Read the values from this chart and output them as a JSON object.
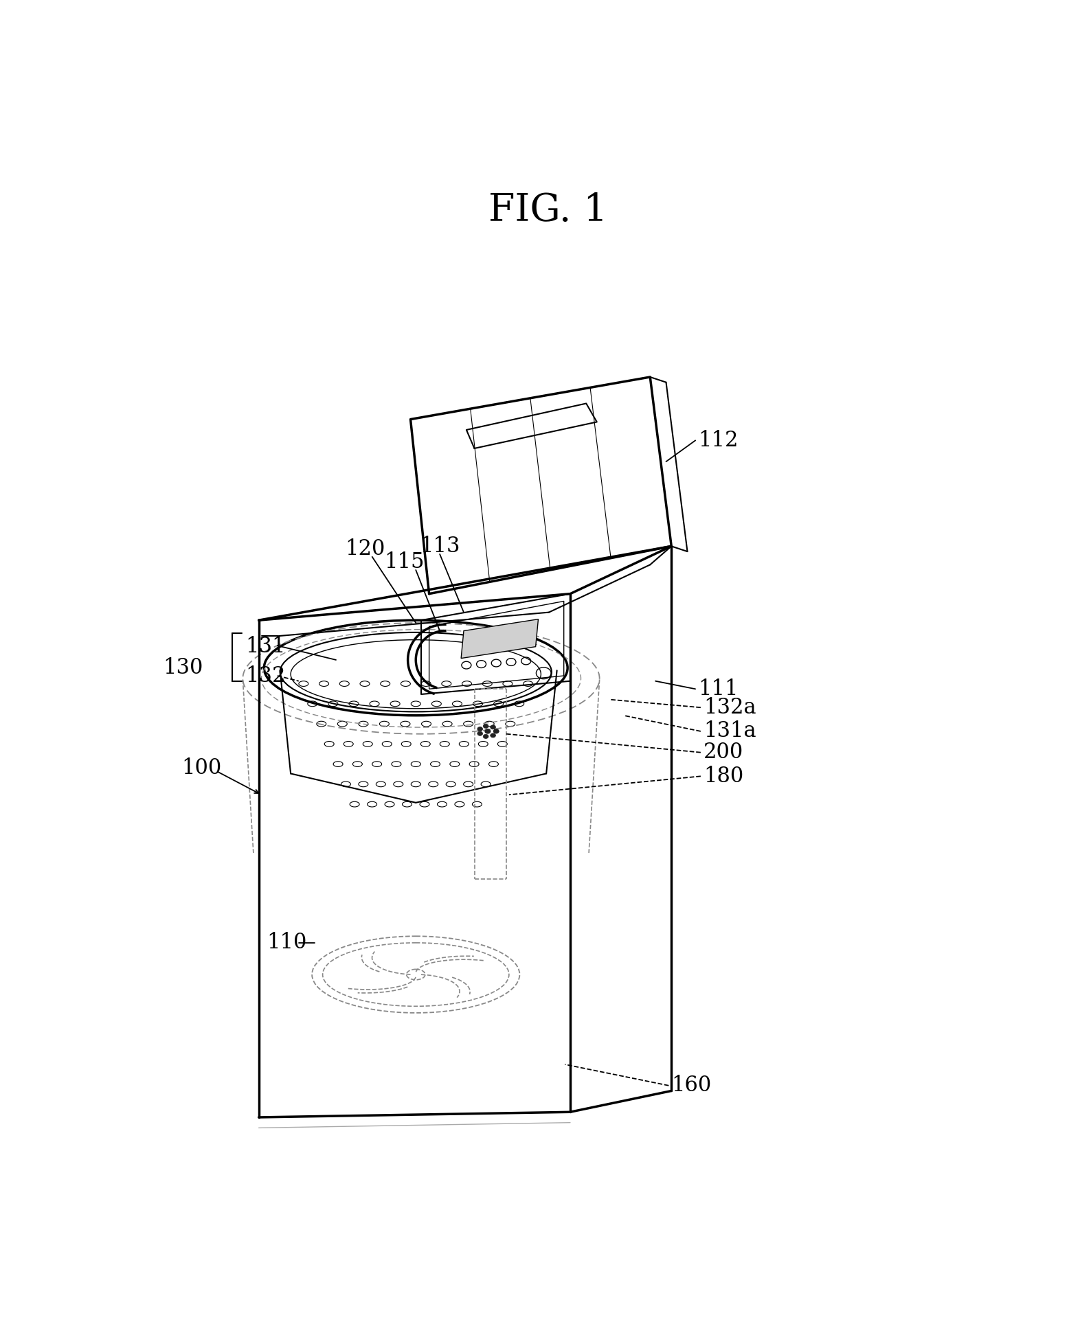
{
  "title": "FIG. 1",
  "title_fontsize": 40,
  "background_color": "#ffffff",
  "line_color": "#000000",
  "dashed_color": "#888888",
  "figsize": [
    15.56,
    19.44
  ],
  "dpi": 100
}
